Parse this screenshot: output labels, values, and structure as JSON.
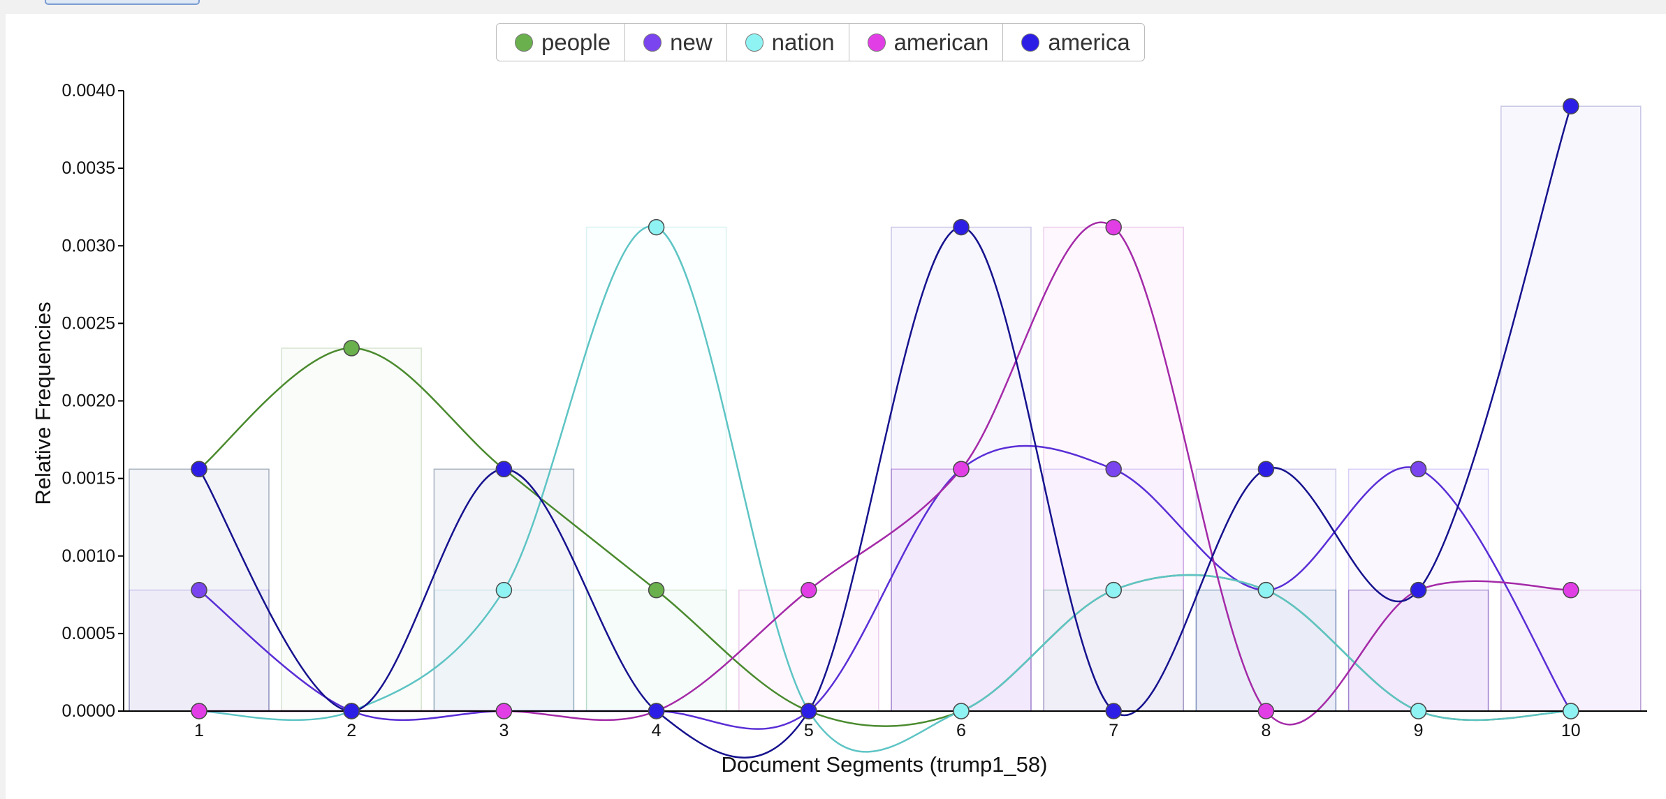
{
  "chart_data": {
    "type": "line",
    "xlabel": "Document Segments (trump1_58)",
    "ylabel": "Relative Frequencies",
    "x": [
      1,
      2,
      3,
      4,
      5,
      6,
      7,
      8,
      9,
      10
    ],
    "ylim": [
      0,
      0.004
    ],
    "yticks": [
      "0.0000",
      "0.0005",
      "0.0010",
      "0.0015",
      "0.0020",
      "0.0025",
      "0.0030",
      "0.0035",
      "0.0040"
    ],
    "legend_position": "top-center",
    "grid": false,
    "series": [
      {
        "name": "people",
        "color": "#6ab04c",
        "line_color": "#4a8a2e",
        "values": [
          0.00156,
          0.00234,
          0.00156,
          0.00078,
          0.0,
          0.0,
          0.00078,
          0.00078,
          0.0,
          0.0
        ]
      },
      {
        "name": "new",
        "color": "#7a44ee",
        "line_color": "#5a2ed6",
        "values": [
          0.00078,
          0.0,
          0.0,
          0.0,
          0.0,
          0.00156,
          0.00156,
          0.00078,
          0.00156,
          0.0
        ]
      },
      {
        "name": "nation",
        "color": "#8ff3f3",
        "line_color": "#5ec4c4",
        "values": [
          0.0,
          0.0,
          0.00078,
          0.00312,
          0.0,
          0.0,
          0.00078,
          0.00078,
          0.0,
          0.0
        ]
      },
      {
        "name": "american",
        "color": "#e23ee6",
        "line_color": "#a42aa8",
        "values": [
          0.0,
          0.0,
          0.0,
          0.0,
          0.00078,
          0.00156,
          0.00312,
          0.0,
          0.00078,
          0.00078
        ]
      },
      {
        "name": "america",
        "color": "#2d1ee6",
        "line_color": "#16128e",
        "values": [
          0.00156,
          0.0,
          0.00156,
          0.0,
          0.0,
          0.00312,
          0.0,
          0.00156,
          0.00078,
          0.0039
        ]
      }
    ]
  }
}
